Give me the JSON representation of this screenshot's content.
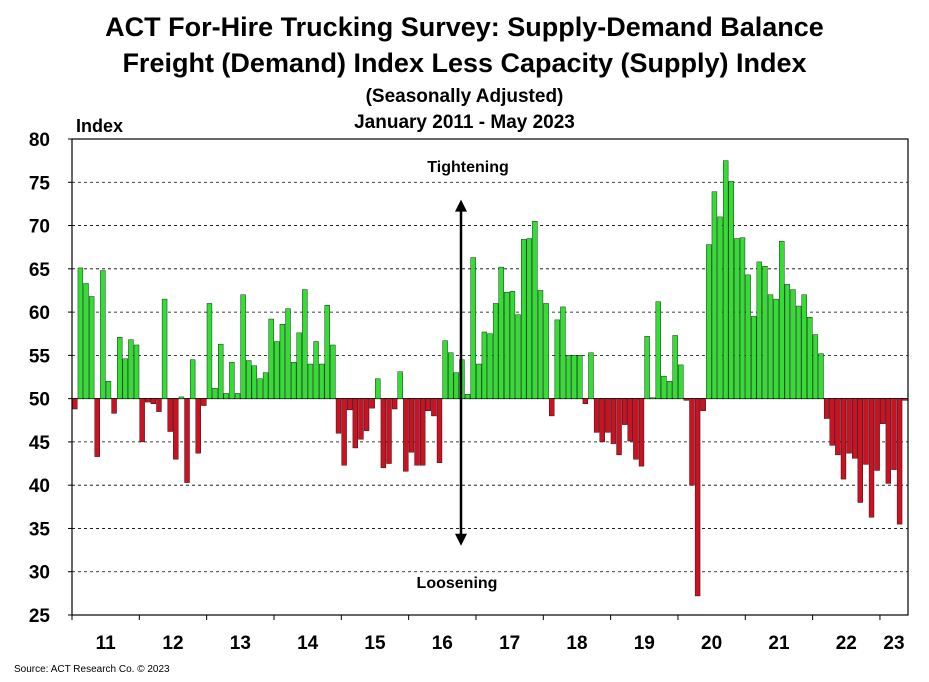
{
  "title_lines": [
    "ACT For-Hire Trucking Survey: Supply-Demand Balance",
    "Freight (Demand) Index Less Capacity (Supply) Index",
    "(Seasonally Adjusted)",
    "January 2011 - May 2023"
  ],
  "source": "Source: ACT Research Co. © 2023",
  "annotations": {
    "top": "Tightening",
    "bottom": "Loosening"
  },
  "colors": {
    "above": "#33dd33",
    "below": "#cc1122",
    "bar_edge": "#000000",
    "grid": "#000000"
  },
  "chart_data": {
    "type": "bar",
    "ylabel": "Index",
    "ylim": [
      25,
      80
    ],
    "yticks": [
      25,
      30,
      35,
      40,
      45,
      50,
      55,
      60,
      65,
      70,
      75,
      80
    ],
    "baseline": 50,
    "grid": "horizontal dashed",
    "start": "January 2011",
    "end": "May 2023",
    "xtick_labels": [
      "11",
      "12",
      "13",
      "14",
      "15",
      "16",
      "17",
      "18",
      "19",
      "20",
      "21",
      "22",
      "23"
    ],
    "values": [
      48.8,
      65.1,
      63.3,
      61.8,
      43.3,
      64.8,
      52.0,
      48.3,
      57.1,
      54.6,
      56.8,
      56.2,
      45.0,
      49.6,
      49.4,
      48.5,
      61.5,
      46.2,
      43.0,
      50.2,
      40.3,
      54.5,
      43.7,
      49.2,
      61.0,
      51.2,
      56.3,
      50.6,
      54.2,
      50.6,
      62.0,
      54.4,
      53.8,
      52.3,
      53.0,
      59.2,
      56.6,
      58.6,
      60.4,
      54.2,
      57.6,
      62.6,
      54.0,
      56.6,
      54.0,
      60.8,
      56.2,
      46.0,
      42.3,
      48.7,
      44.3,
      45.3,
      46.3,
      48.9,
      52.3,
      42.0,
      42.5,
      48.8,
      53.1,
      41.6,
      43.8,
      42.3,
      42.3,
      48.6,
      48.0,
      42.6,
      56.7,
      55.3,
      53.0,
      54.5,
      50.5,
      66.3,
      54.0,
      57.7,
      57.5,
      61.0,
      65.2,
      62.3,
      62.4,
      59.7,
      68.4,
      68.5,
      70.5,
      62.5,
      61.0,
      48.0,
      59.1,
      60.6,
      55.0,
      55.0,
      55.0,
      49.4,
      55.3,
      46.1,
      45.0,
      46.1,
      44.8,
      43.5,
      47.0,
      45.1,
      43.0,
      42.2,
      57.2,
      50.1,
      61.2,
      52.6,
      52.0,
      57.3,
      53.9,
      49.8,
      40.0,
      27.2,
      48.6,
      67.8,
      73.9,
      71.0,
      77.5,
      75.1,
      68.5,
      68.6,
      64.3,
      59.5,
      65.8,
      65.3,
      62.0,
      61.5,
      68.2,
      63.2,
      62.6,
      60.7,
      62.0,
      59.4,
      57.4,
      55.2,
      47.7,
      44.6,
      43.5,
      40.7,
      43.7,
      43.1,
      38.0,
      42.4,
      36.3,
      41.7,
      47.1,
      40.2,
      41.8,
      35.5,
      49.8
    ]
  }
}
